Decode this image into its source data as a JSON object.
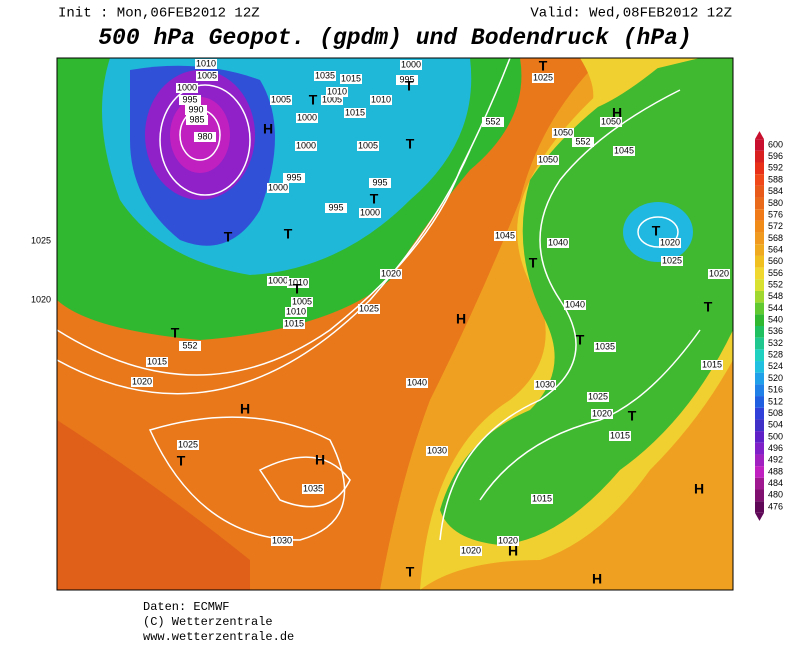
{
  "header": {
    "init": "Init : Mon,06FEB2012 12Z",
    "valid": "Valid: Wed,08FEB2012 12Z",
    "title": "500 hPa Geopot. (gpdm) und Bodendruck (hPa)"
  },
  "colorbar": {
    "labels": [
      600,
      596,
      592,
      588,
      584,
      580,
      576,
      572,
      568,
      564,
      560,
      556,
      552,
      548,
      544,
      540,
      536,
      532,
      528,
      524,
      520,
      516,
      512,
      508,
      504,
      500,
      496,
      492,
      488,
      484,
      480,
      476
    ],
    "colors": [
      "#c8102e",
      "#d82020",
      "#e83018",
      "#f04818",
      "#e85a1a",
      "#e86a1a",
      "#f07a18",
      "#f08a18",
      "#f09a20",
      "#f0aa20",
      "#f0c020",
      "#f0d830",
      "#d8e030",
      "#a0d830",
      "#60c830",
      "#30b830",
      "#20c060",
      "#20c890",
      "#20d0c0",
      "#20c0e0",
      "#20a0e8",
      "#2080e8",
      "#2060e0",
      "#3040d8",
      "#4030c8",
      "#6020c8",
      "#8020c8",
      "#a020c0",
      "#c020c0",
      "#a01890",
      "#801070",
      "#600858"
    ]
  },
  "map_labels": [
    "1010",
    "1005",
    "1000",
    "995",
    "990",
    "985",
    "980",
    "H",
    "1005",
    "1000",
    "1005",
    "1010",
    "1015",
    "1035",
    "1000",
    "995",
    "1010",
    "1015",
    "T",
    "T",
    "T",
    "1000",
    "1005",
    "995",
    "995",
    "1000",
    "T",
    "995",
    "1000",
    "T",
    "T",
    "1025",
    "1020",
    "1000",
    "1010",
    "T",
    "1005",
    "1010",
    "1015",
    "1020",
    "1025",
    "T",
    "552",
    "1015",
    "1020",
    "H",
    "1025",
    "T",
    "H",
    "1035",
    "1030",
    "1040",
    "1030",
    "H",
    "552",
    "1045",
    "1040",
    "T",
    "1040",
    "T",
    "1035",
    "1030",
    "1025",
    "1020",
    "T",
    "1015",
    "1015",
    "1020",
    "H",
    "1020",
    "T",
    "H",
    "H",
    "1015",
    "T",
    "1020",
    "1025",
    "1020",
    "T",
    "H",
    "1050",
    "1050",
    "552",
    "1045",
    "1050",
    "1025",
    "T"
  ],
  "footer": [
    "Daten: ECMWF",
    "(C) Wetterzentrale",
    "www.wetterzentrale.de"
  ]
}
